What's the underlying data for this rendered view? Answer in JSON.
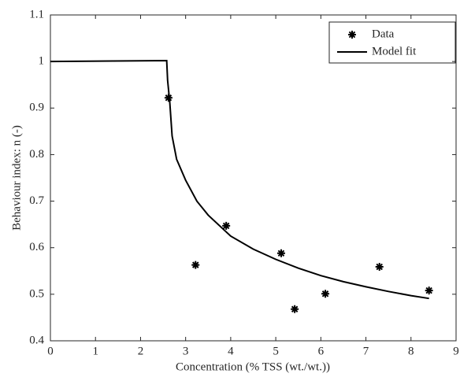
{
  "chart_data": {
    "type": "scatter",
    "xlabel": "Concentration (% TSS (wt./wt.))",
    "ylabel": "Behaviour index: n (-)",
    "xlim": [
      0,
      9
    ],
    "xticks": [
      0,
      1,
      2,
      3,
      4,
      5,
      6,
      7,
      8,
      9
    ],
    "ylim": [
      0.4,
      1.1
    ],
    "yticks": [
      0.4,
      0.5,
      0.6,
      0.7,
      0.8,
      0.9,
      1,
      1.1
    ],
    "legend": "upper right",
    "series": [
      {
        "name": "Data",
        "type": "scatter",
        "color": "#000000",
        "x": [
          2.62,
          3.22,
          3.9,
          5.12,
          5.42,
          6.1,
          7.3,
          8.4
        ],
        "values": [
          0.922,
          0.563,
          0.647,
          0.588,
          0.468,
          0.501,
          0.559,
          0.508
        ]
      },
      {
        "name": "Model fit",
        "type": "line",
        "color": "#000000",
        "x": [
          0,
          2.58,
          2.6,
          2.65,
          2.7,
          2.8,
          3.0,
          3.25,
          3.5,
          4.0,
          4.5,
          5.0,
          5.5,
          6.0,
          6.5,
          7.0,
          7.5,
          8.0,
          8.4
        ],
        "values": [
          1.0,
          1.002,
          0.96,
          0.91,
          0.84,
          0.79,
          0.745,
          0.7,
          0.67,
          0.625,
          0.597,
          0.575,
          0.556,
          0.54,
          0.527,
          0.516,
          0.506,
          0.497,
          0.491
        ]
      }
    ]
  }
}
